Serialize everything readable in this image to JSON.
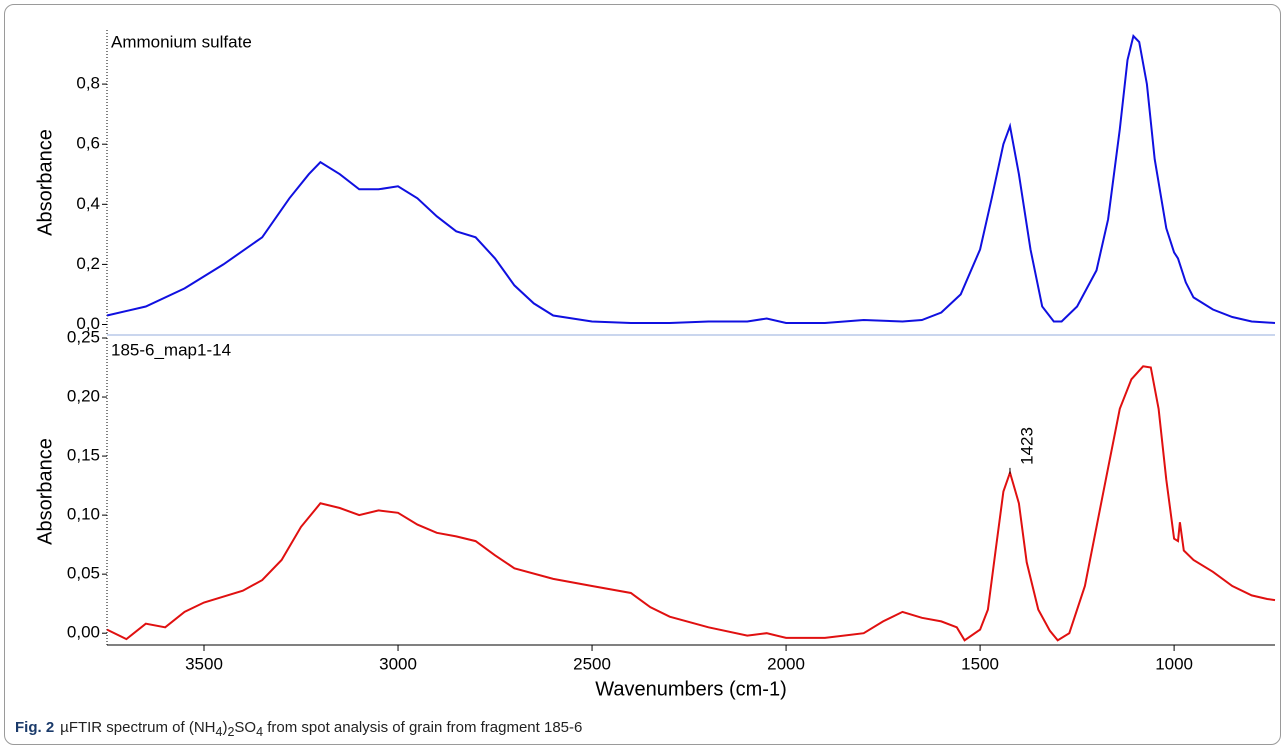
{
  "chart_data": [
    {
      "type": "line",
      "label": "Ammonium sulfate",
      "ylabel": "Absorbance",
      "xlim": [
        3750,
        740
      ],
      "ylim": [
        -0.035,
        0.98
      ],
      "yticks": [
        {
          "value": 0,
          "label": "0,0"
        },
        {
          "value": 0.2,
          "label": "0,2"
        },
        {
          "value": 0.4,
          "label": "0,4"
        },
        {
          "value": 0.6,
          "label": "0,6"
        },
        {
          "value": 0.8,
          "label": "0,8"
        }
      ],
      "x": [
        3750,
        3650,
        3550,
        3450,
        3350,
        3280,
        3230,
        3200,
        3150,
        3100,
        3050,
        3000,
        2950,
        2900,
        2850,
        2800,
        2750,
        2700,
        2650,
        2600,
        2500,
        2400,
        2300,
        2200,
        2100,
        2050,
        2000,
        1900,
        1800,
        1700,
        1650,
        1600,
        1550,
        1500,
        1470,
        1440,
        1423,
        1400,
        1370,
        1340,
        1310,
        1290,
        1250,
        1200,
        1170,
        1140,
        1120,
        1105,
        1090,
        1070,
        1050,
        1020,
        1000,
        990,
        970,
        950,
        900,
        850,
        800,
        740
      ],
      "series": [
        {
          "name": "Ammonium sulfate",
          "color": "#1010e0",
          "values": [
            0.03,
            0.06,
            0.12,
            0.2,
            0.29,
            0.42,
            0.5,
            0.54,
            0.5,
            0.45,
            0.45,
            0.46,
            0.42,
            0.36,
            0.31,
            0.29,
            0.22,
            0.13,
            0.07,
            0.03,
            0.01,
            0.005,
            0.005,
            0.01,
            0.01,
            0.02,
            0.005,
            0.005,
            0.015,
            0.01,
            0.015,
            0.04,
            0.1,
            0.25,
            0.42,
            0.6,
            0.66,
            0.5,
            0.25,
            0.06,
            0.01,
            0.01,
            0.06,
            0.18,
            0.35,
            0.65,
            0.88,
            0.96,
            0.94,
            0.8,
            0.55,
            0.32,
            0.24,
            0.22,
            0.14,
            0.09,
            0.05,
            0.025,
            0.01,
            0.005
          ]
        }
      ]
    },
    {
      "type": "line",
      "label": "185-6_map1-14",
      "ylabel": "Absorbance",
      "xlabel": "Wavenumbers (cm-1)",
      "xlim": [
        3750,
        740
      ],
      "ylim": [
        -0.01,
        0.25
      ],
      "xticks": [
        3500,
        3000,
        2500,
        2000,
        1500,
        1000
      ],
      "yticks": [
        {
          "value": 0,
          "label": "0,00"
        },
        {
          "value": 0.05,
          "label": "0,05"
        },
        {
          "value": 0.1,
          "label": "0,10"
        },
        {
          "value": 0.15,
          "label": "0,15"
        },
        {
          "value": 0.2,
          "label": "0,20"
        },
        {
          "value": 0.25,
          "label": "0,25"
        }
      ],
      "annotation": {
        "text": "1423",
        "x": 1423,
        "y": 0.14
      },
      "x": [
        3750,
        3700,
        3650,
        3600,
        3550,
        3500,
        3400,
        3350,
        3300,
        3250,
        3200,
        3150,
        3100,
        3050,
        3000,
        2950,
        2900,
        2850,
        2800,
        2750,
        2700,
        2600,
        2500,
        2400,
        2350,
        2300,
        2200,
        2100,
        2050,
        2000,
        1900,
        1800,
        1750,
        1700,
        1650,
        1600,
        1560,
        1540,
        1500,
        1480,
        1460,
        1440,
        1423,
        1400,
        1380,
        1350,
        1320,
        1300,
        1270,
        1230,
        1200,
        1170,
        1140,
        1110,
        1080,
        1060,
        1040,
        1020,
        1000,
        990,
        985,
        975,
        950,
        900,
        850,
        800,
        760,
        740
      ],
      "series": [
        {
          "name": "185-6_map1-14",
          "color": "#e01010",
          "values": [
            0.003,
            -0.005,
            0.008,
            0.005,
            0.018,
            0.026,
            0.036,
            0.045,
            0.062,
            0.09,
            0.11,
            0.106,
            0.1,
            0.104,
            0.102,
            0.092,
            0.085,
            0.082,
            0.078,
            0.066,
            0.055,
            0.046,
            0.04,
            0.034,
            0.022,
            0.014,
            0.005,
            -0.002,
            0,
            -0.004,
            -0.004,
            0,
            0.01,
            0.018,
            0.013,
            0.01,
            0.005,
            -0.006,
            0.003,
            0.02,
            0.07,
            0.12,
            0.136,
            0.11,
            0.06,
            0.02,
            0.002,
            -0.006,
            0,
            0.04,
            0.09,
            0.14,
            0.19,
            0.215,
            0.226,
            0.225,
            0.19,
            0.13,
            0.08,
            0.078,
            0.094,
            0.07,
            0.062,
            0.052,
            0.04,
            0.032,
            0.029,
            0.028
          ]
        }
      ]
    }
  ],
  "caption": {
    "label": "Fig. 2",
    "parts": [
      "µFTIR spectrum of (NH",
      "4",
      ")",
      "2",
      "SO",
      "4",
      " from spot analysis of grain from fragment 185-6"
    ]
  }
}
